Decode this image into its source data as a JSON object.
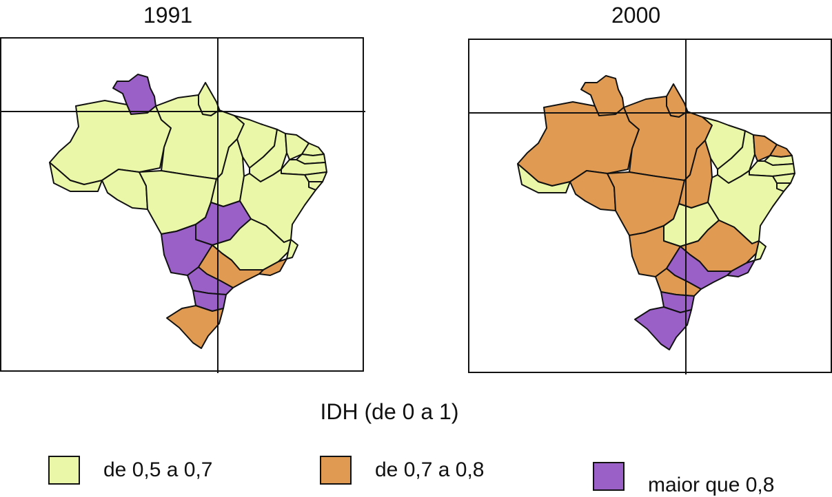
{
  "maps": [
    {
      "title": "1991",
      "states": {
        "RR": "maior",
        "AP": "low",
        "AM": "low",
        "PA": "low",
        "AC": "low",
        "RO": "low",
        "MT": "low",
        "TO": "low",
        "MA": "low",
        "PI": "low",
        "CE": "low",
        "RN": "low",
        "PB": "low",
        "PE": "low",
        "AL": "low",
        "SE": "low",
        "BA": "low",
        "GO": "maior",
        "MS": "maior",
        "MG": "low",
        "SP": "mid",
        "RJ": "mid",
        "ES": "low",
        "PR": "maior",
        "SC": "maior",
        "RS": "mid",
        "DF": "maior"
      }
    },
    {
      "title": "2000",
      "states": {
        "RR": "mid",
        "AP": "mid",
        "AM": "mid",
        "PA": "mid",
        "AC": "low",
        "RO": "mid",
        "MT": "mid",
        "TO": "mid",
        "MA": "low",
        "PI": "low",
        "CE": "mid",
        "RN": "mid",
        "PB": "low",
        "PE": "low",
        "AL": "low",
        "SE": "low",
        "BA": "low",
        "GO": "low",
        "MS": "mid",
        "MG": "mid",
        "SP": "maior",
        "RJ": "maior",
        "ES": "low",
        "PR": "mid",
        "SC": "maior",
        "RS": "maior",
        "DF": "maior"
      }
    }
  ],
  "legend": {
    "title": "IDH (de 0 a 1)",
    "items": [
      {
        "key": "low",
        "label": "de 0,5 a 0,7",
        "color": "#eaf7a8"
      },
      {
        "key": "mid",
        "label": "de 0,7 a 0,8",
        "color": "#e09a52"
      },
      {
        "key": "maior",
        "label": "maior que 0,8",
        "color": "#9a60c8"
      }
    ]
  }
}
